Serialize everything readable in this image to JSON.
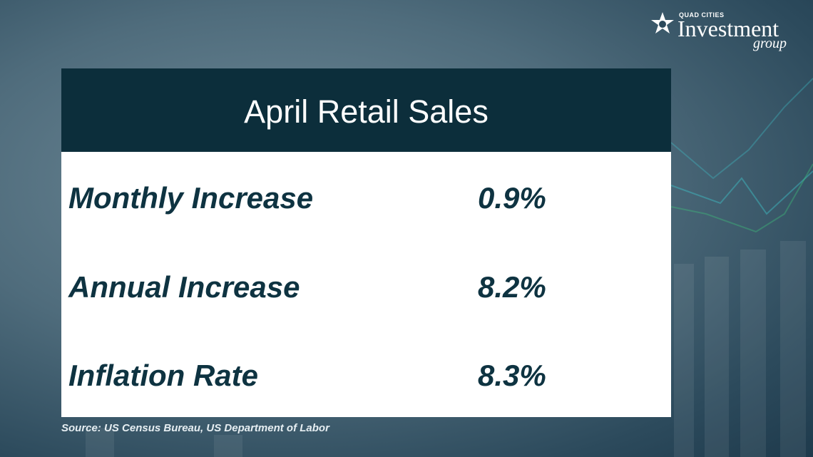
{
  "logo": {
    "top": "QUAD CITIES",
    "name": "Investment",
    "sub": "group"
  },
  "table": {
    "title": "April Retail Sales",
    "rows": [
      [
        "Monthly Increase",
        "0.9%"
      ],
      [
        "Annual Increase",
        "8.2%"
      ],
      [
        "Inflation Rate",
        "8.3%"
      ]
    ]
  },
  "source": "Source: US Census Bureau, US Department of Labor"
}
